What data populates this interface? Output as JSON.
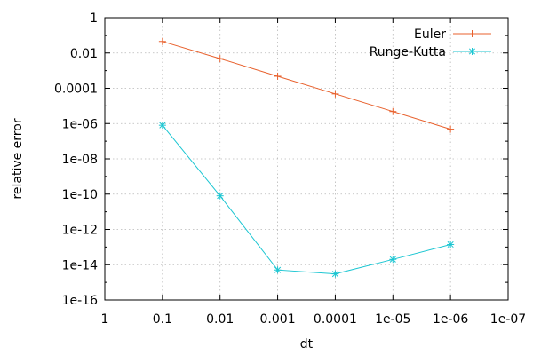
{
  "chart_data": {
    "type": "line",
    "title": "",
    "xlabel": "dt",
    "ylabel": "relative error",
    "x_scale": "log",
    "y_scale": "log",
    "x_reversed": true,
    "xlim": [
      1,
      1e-07
    ],
    "ylim": [
      1e-16,
      1
    ],
    "grid": true,
    "legend_position": "top-right",
    "x_ticks": [
      1,
      0.1,
      0.01,
      0.001,
      0.0001,
      1e-05,
      1e-06,
      1e-07
    ],
    "x_tick_labels": [
      "1",
      "0.1",
      "0.01",
      "0.001",
      "0.0001",
      "1e-05",
      "1e-06",
      "1e-07"
    ],
    "y_ticks": [
      1,
      0.01,
      0.0001,
      1e-06,
      1e-08,
      1e-10,
      1e-12,
      1e-14,
      1e-16
    ],
    "y_tick_labels": [
      "1",
      "0.01",
      "0.0001",
      "1e-06",
      "1e-08",
      "1e-10",
      "1e-12",
      "1e-14",
      "1e-16"
    ],
    "series": [
      {
        "name": "Euler",
        "color": "#e8602c",
        "marker": "plus",
        "x": [
          0.1,
          0.01,
          0.001,
          0.0001,
          1e-05,
          1e-06
        ],
        "y": [
          0.045,
          0.0048,
          0.00048,
          4.8e-05,
          4.8e-06,
          4.8e-07
        ]
      },
      {
        "name": "Runge-Kutta",
        "color": "#1bc6d2",
        "marker": "star",
        "x": [
          0.1,
          0.01,
          0.001,
          0.0001,
          1e-05,
          1e-06
        ],
        "y": [
          8e-07,
          8e-11,
          5e-15,
          3e-15,
          2e-14,
          1.4e-13
        ]
      }
    ]
  }
}
